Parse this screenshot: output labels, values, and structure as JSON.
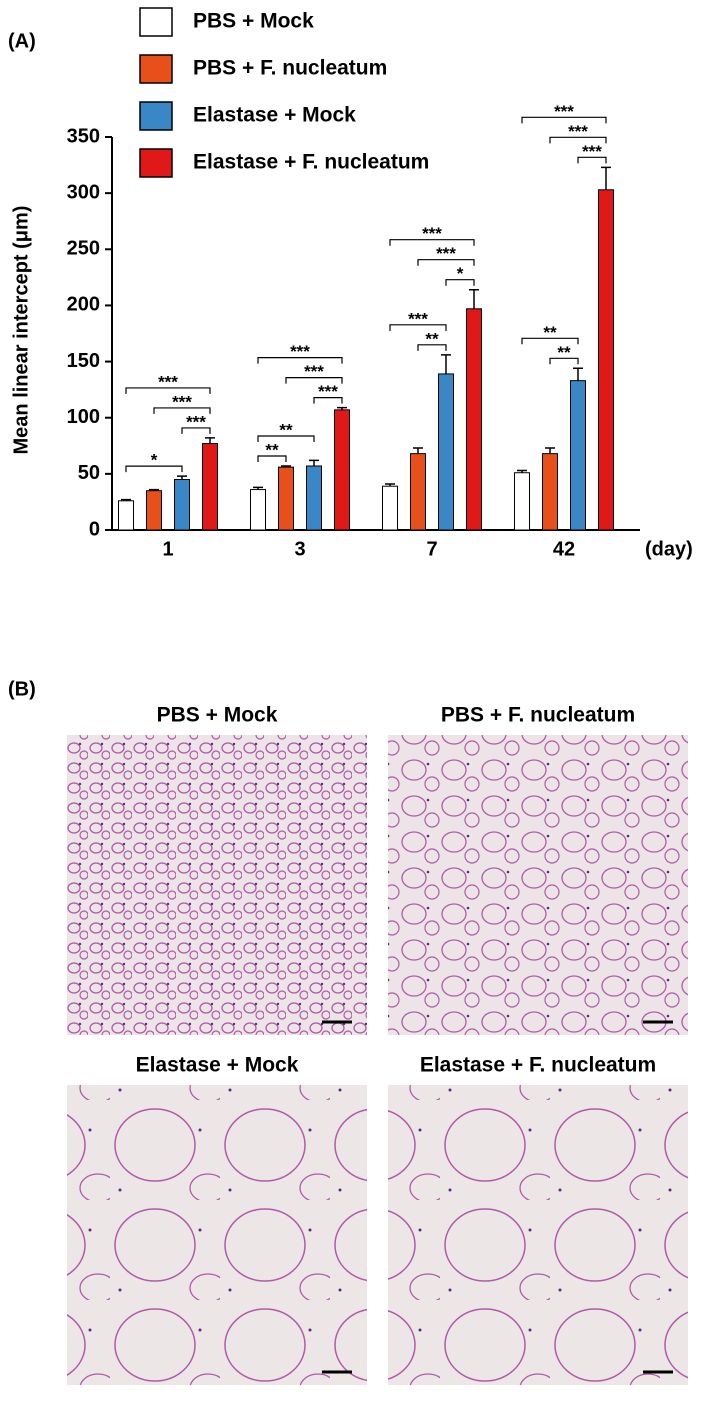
{
  "panel_a_label": "(A)",
  "chart_data": {
    "type": "bar",
    "y_label": "Mean linear intercept (μm)",
    "x_label": "(day)",
    "categories": [
      "1",
      "3",
      "7",
      "42"
    ],
    "series": [
      {
        "name": "PBS + Mock",
        "color": "#ffffff",
        "values": [
          26,
          36,
          39,
          51
        ],
        "errors": [
          1,
          2,
          2,
          2
        ]
      },
      {
        "name": "PBS + F. nucleatum",
        "color": "#e8501a",
        "values": [
          35,
          56,
          68,
          68
        ],
        "errors": [
          1,
          1,
          5,
          5
        ]
      },
      {
        "name": "Elastase + Mock",
        "color": "#3a87c8",
        "values": [
          45,
          57,
          139,
          133
        ],
        "errors": [
          3,
          5,
          17,
          11
        ]
      },
      {
        "name": "Elastase + F. nucleatum",
        "color": "#e01818",
        "values": [
          77,
          107,
          197,
          303
        ],
        "errors": [
          5,
          2,
          17,
          20
        ]
      }
    ],
    "ylim": [
      0,
      350
    ],
    "yticks": [
      0,
      50,
      100,
      150,
      200,
      250,
      300,
      350
    ],
    "annotations": [
      {
        "category": 0,
        "series": [
          0,
          2
        ],
        "label": "*"
      },
      {
        "category": 0,
        "series": [
          2,
          3
        ],
        "label": "***"
      },
      {
        "category": 0,
        "series": [
          1,
          3
        ],
        "label": "***"
      },
      {
        "category": 0,
        "series": [
          0,
          3
        ],
        "label": "***"
      },
      {
        "category": 1,
        "series": [
          0,
          1
        ],
        "label": "**"
      },
      {
        "category": 1,
        "series": [
          0,
          2
        ],
        "label": "**"
      },
      {
        "category": 1,
        "series": [
          2,
          3
        ],
        "label": "***"
      },
      {
        "category": 1,
        "series": [
          1,
          3
        ],
        "label": "***"
      },
      {
        "category": 1,
        "series": [
          0,
          3
        ],
        "label": "***"
      },
      {
        "category": 2,
        "series": [
          1,
          2
        ],
        "label": "**"
      },
      {
        "category": 2,
        "series": [
          0,
          2
        ],
        "label": "***"
      },
      {
        "category": 2,
        "series": [
          2,
          3
        ],
        "label": "*"
      },
      {
        "category": 2,
        "series": [
          1,
          3
        ],
        "label": "***"
      },
      {
        "category": 2,
        "series": [
          0,
          3
        ],
        "label": "***"
      },
      {
        "category": 3,
        "series": [
          1,
          2
        ],
        "label": "**"
      },
      {
        "category": 3,
        "series": [
          0,
          2
        ],
        "label": "**"
      },
      {
        "category": 3,
        "series": [
          2,
          3
        ],
        "label": "***"
      },
      {
        "category": 3,
        "series": [
          1,
          3
        ],
        "label": "***"
      },
      {
        "category": 3,
        "series": [
          0,
          3
        ],
        "label": "***"
      }
    ]
  },
  "panel_b": {
    "label": "(B)",
    "images": [
      {
        "title": "PBS + Mock"
      },
      {
        "title": "PBS + F. nucleatum"
      },
      {
        "title": "Elastase + Mock"
      },
      {
        "title": "Elastase + F. nucleatum"
      }
    ]
  }
}
